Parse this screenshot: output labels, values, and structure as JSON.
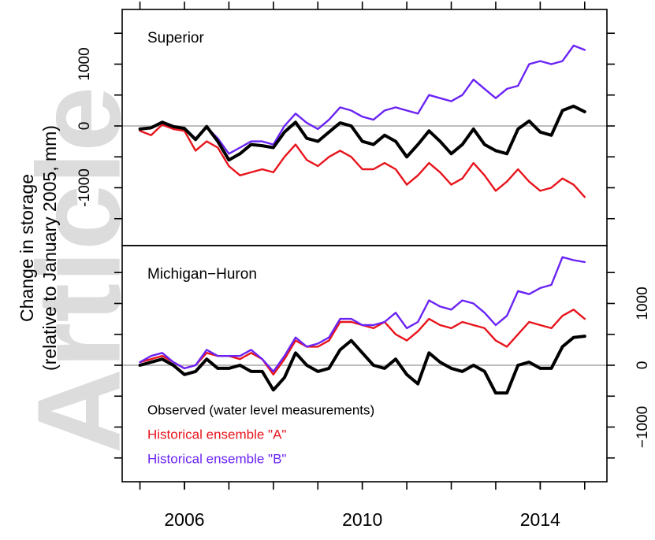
{
  "watermark": "Article",
  "ylabel": {
    "lines": [
      "Change in storage",
      "(relative to January 2005, mm)"
    ]
  },
  "chart_data": [
    {
      "type": "line",
      "title": "Superior",
      "yaxis_side": "left",
      "xlim": [
        2004.6,
        2015.5
      ],
      "xminor_ticks": [
        2005,
        2006,
        2007,
        2008,
        2009,
        2010,
        2011,
        2012,
        2013,
        2014,
        2015
      ],
      "ylim": [
        -1936,
        1885
      ],
      "yticks": [
        -1000,
        0,
        1000
      ],
      "yminor_ticks": [
        -1500,
        -500,
        500,
        1500
      ],
      "reference_line": 0,
      "x": [
        2005,
        2005.25,
        2005.5,
        2005.75,
        2006,
        2006.25,
        2006.5,
        2006.75,
        2007,
        2007.25,
        2007.5,
        2007.75,
        2008,
        2008.25,
        2008.5,
        2008.75,
        2009,
        2009.25,
        2009.5,
        2009.75,
        2010,
        2010.25,
        2010.5,
        2010.75,
        2011,
        2011.25,
        2011.5,
        2011.75,
        2012,
        2012.25,
        2012.5,
        2012.75,
        2013,
        2013.25,
        2013.5,
        2013.75,
        2014,
        2014.25,
        2014.5,
        2014.75,
        2015
      ],
      "series": [
        {
          "color": "#e8141c",
          "values": [
            -80,
            -150,
            20,
            -50,
            -80,
            -400,
            -250,
            -350,
            -650,
            -800,
            -750,
            -700,
            -750,
            -500,
            -300,
            -550,
            -650,
            -500,
            -400,
            -500,
            -700,
            -700,
            -600,
            -700,
            -950,
            -800,
            -600,
            -750,
            -950,
            -850,
            -600,
            -800,
            -1050,
            -900,
            -700,
            -900,
            -1050,
            -1000,
            -850,
            -950,
            -1150
          ]
        },
        {
          "color": "#6a23f5",
          "values": [
            -50,
            -20,
            50,
            -20,
            -30,
            -200,
            -20,
            -200,
            -450,
            -350,
            -250,
            -250,
            -300,
            0,
            200,
            50,
            -50,
            100,
            300,
            250,
            150,
            100,
            250,
            300,
            250,
            200,
            500,
            450,
            400,
            500,
            750,
            600,
            450,
            600,
            650,
            1000,
            1050,
            1000,
            1050,
            1300,
            1230
          ]
        },
        {
          "color": "#000000",
          "values": [
            -50,
            -30,
            60,
            -10,
            -40,
            -220,
            -10,
            -250,
            -550,
            -450,
            -300,
            -320,
            -350,
            -100,
            60,
            -200,
            -250,
            -100,
            50,
            0,
            -250,
            -300,
            -150,
            -250,
            -500,
            -300,
            -80,
            -250,
            -450,
            -300,
            -50,
            -300,
            -400,
            -450,
            -50,
            80,
            -100,
            -150,
            250,
            320,
            230
          ]
        }
      ]
    },
    {
      "type": "line",
      "title": "Michigan−Huron",
      "yaxis_side": "right",
      "xlim": [
        2004.6,
        2015.5
      ],
      "xticks": [
        2006,
        2010,
        2014
      ],
      "xminor_ticks": [
        2005,
        2006,
        2007,
        2008,
        2009,
        2010,
        2011,
        2012,
        2013,
        2014,
        2015
      ],
      "ylim": [
        -1885,
        1936
      ],
      "yticks": [
        {
          "value": -1000,
          "label": "−1000"
        },
        0,
        1000
      ],
      "yminor_ticks": [
        -1500,
        -500,
        500,
        1500
      ],
      "reference_line": 0,
      "x": [
        2005,
        2005.25,
        2005.5,
        2005.75,
        2006,
        2006.25,
        2006.5,
        2006.75,
        2007,
        2007.25,
        2007.5,
        2007.75,
        2008,
        2008.25,
        2008.5,
        2008.75,
        2009,
        2009.25,
        2009.5,
        2009.75,
        2010,
        2010.25,
        2010.5,
        2010.75,
        2011,
        2011.25,
        2011.5,
        2011.75,
        2012,
        2012.25,
        2012.5,
        2012.75,
        2013,
        2013.25,
        2013.5,
        2013.75,
        2014,
        2014.25,
        2014.5,
        2014.75,
        2015
      ],
      "series": [
        {
          "name": "Historical ensemble \"A\"",
          "color": "#e8141c",
          "values": [
            50,
            100,
            150,
            50,
            -50,
            0,
            200,
            150,
            150,
            100,
            200,
            100,
            -150,
            100,
            400,
            300,
            300,
            400,
            700,
            700,
            650,
            600,
            700,
            500,
            400,
            550,
            750,
            650,
            600,
            700,
            650,
            600,
            400,
            300,
            500,
            700,
            650,
            600,
            800,
            900,
            750
          ]
        },
        {
          "name": "Historical ensemble \"B\"",
          "color": "#6a23f5",
          "values": [
            50,
            150,
            200,
            50,
            -50,
            0,
            250,
            150,
            150,
            150,
            250,
            100,
            -100,
            150,
            450,
            300,
            350,
            450,
            750,
            750,
            650,
            650,
            700,
            850,
            600,
            700,
            1050,
            950,
            900,
            1050,
            1000,
            850,
            650,
            800,
            1200,
            1150,
            1250,
            1300,
            1750,
            1700,
            1670
          ]
        },
        {
          "name": "Observed (water level measurements)",
          "color": "#000000",
          "values": [
            0,
            50,
            100,
            0,
            -150,
            -100,
            100,
            -50,
            -50,
            0,
            -100,
            -100,
            -400,
            -200,
            200,
            0,
            -100,
            -50,
            250,
            400,
            200,
            0,
            -50,
            100,
            -150,
            -300,
            200,
            50,
            -50,
            -100,
            0,
            -100,
            -450,
            -450,
            0,
            50,
            -50,
            -50,
            300,
            450,
            470
          ]
        }
      ],
      "legend_order": [
        2,
        0,
        1
      ]
    }
  ]
}
